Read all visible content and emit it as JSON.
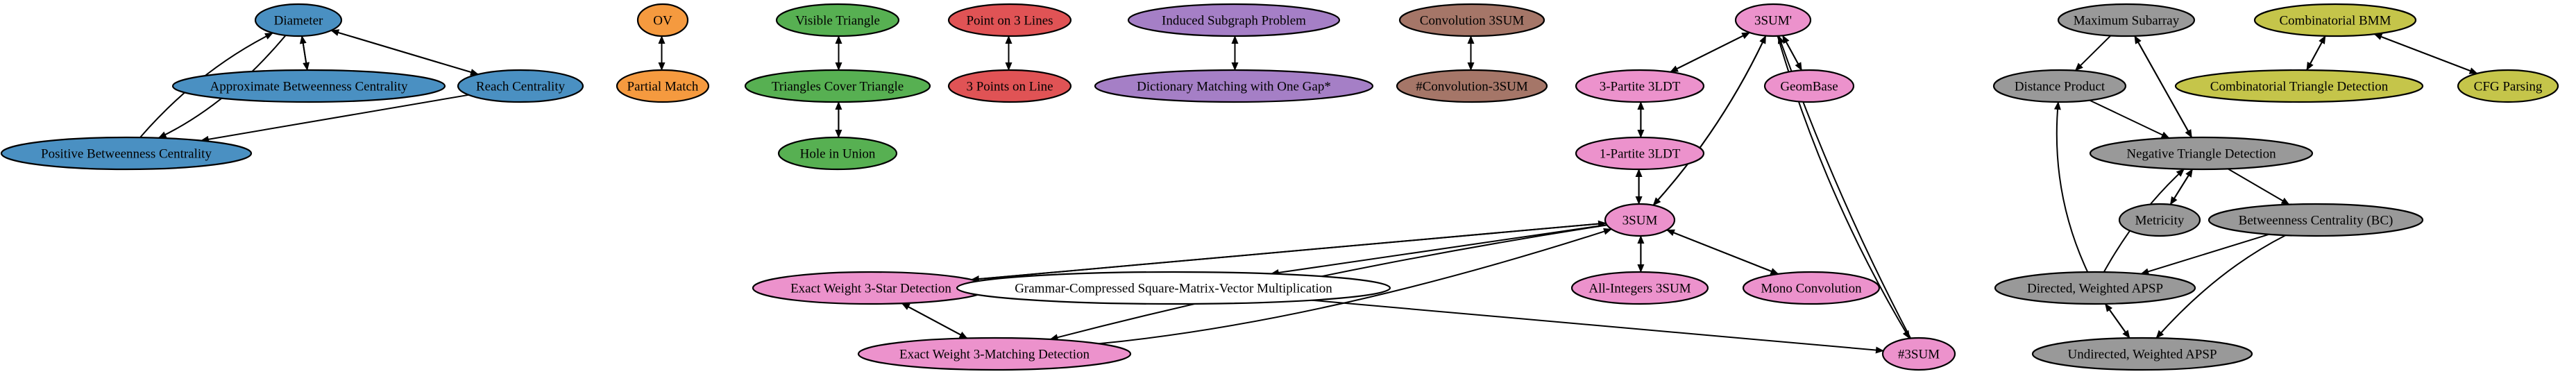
{
  "colors": {
    "blue": "#4a90c2",
    "orange": "#f59a3f",
    "green": "#57b052",
    "red": "#e05355",
    "purple": "#a57fc6",
    "brown": "#a57668",
    "pink": "#ec92cc",
    "gray": "#999999",
    "olive": "#c5c54a",
    "white": "#ffffff"
  },
  "nodes": [
    {
      "id": "diameter",
      "label": "Diameter",
      "color": "blue"
    },
    {
      "id": "approx_bc",
      "label": "Approximate Betweenness Centrality",
      "color": "blue"
    },
    {
      "id": "reach",
      "label": "Reach Centrality",
      "color": "blue"
    },
    {
      "id": "pos_bc",
      "label": "Positive Betweenness Centrality",
      "color": "blue"
    },
    {
      "id": "ov",
      "label": "OV",
      "color": "orange"
    },
    {
      "id": "partial_match",
      "label": "Partial Match",
      "color": "orange"
    },
    {
      "id": "visible_tri",
      "label": "Visible Triangle",
      "color": "green"
    },
    {
      "id": "tri_cover",
      "label": "Triangles Cover Triangle",
      "color": "green"
    },
    {
      "id": "hole_union",
      "label": "Hole in Union",
      "color": "green"
    },
    {
      "id": "pt3lines",
      "label": "Point on 3 Lines",
      "color": "red"
    },
    {
      "id": "pts3line",
      "label": "3 Points on Line",
      "color": "red"
    },
    {
      "id": "induced_sub",
      "label": "Induced Subgraph Problem",
      "color": "purple"
    },
    {
      "id": "dict_match",
      "label": "Dictionary Matching with One Gap*",
      "color": "purple"
    },
    {
      "id": "conv3sum",
      "label": "Convolution 3SUM",
      "color": "brown"
    },
    {
      "id": "num_conv3sum",
      "label": "#Convolution-3SUM",
      "color": "brown"
    },
    {
      "id": "threesum_p",
      "label": "3SUM'",
      "color": "pink"
    },
    {
      "id": "partite3",
      "label": "3-Partite 3LDT",
      "color": "pink"
    },
    {
      "id": "geombase",
      "label": "GeomBase",
      "color": "pink"
    },
    {
      "id": "partite1",
      "label": "1-Partite 3LDT",
      "color": "pink"
    },
    {
      "id": "threesum",
      "label": "3SUM",
      "color": "pink"
    },
    {
      "id": "exact_star",
      "label": "Exact Weight 3-Star Detection",
      "color": "pink"
    },
    {
      "id": "grammar",
      "label": "Grammar-Compressed Square-Matrix-Vector Multiplication",
      "color": "white"
    },
    {
      "id": "all_int",
      "label": "All-Integers 3SUM",
      "color": "pink"
    },
    {
      "id": "mono_conv",
      "label": "Mono Convolution",
      "color": "pink"
    },
    {
      "id": "exact_match",
      "label": "Exact Weight 3-Matching Detection",
      "color": "pink"
    },
    {
      "id": "num3sum",
      "label": "#3SUM",
      "color": "pink"
    },
    {
      "id": "max_subarray",
      "label": "Maximum Subarray",
      "color": "gray"
    },
    {
      "id": "dist_prod",
      "label": "Distance Product",
      "color": "gray"
    },
    {
      "id": "neg_tri",
      "label": "Negative Triangle Detection",
      "color": "gray"
    },
    {
      "id": "metricity",
      "label": "Metricity",
      "color": "gray"
    },
    {
      "id": "bc",
      "label": "Betweenness Centrality (BC)",
      "color": "gray"
    },
    {
      "id": "dir_apsp",
      "label": "Directed, Weighted APSP",
      "color": "gray"
    },
    {
      "id": "undir_apsp",
      "label": "Undirected, Weighted APSP",
      "color": "gray"
    },
    {
      "id": "comb_bmm",
      "label": "Combinatorial BMM",
      "color": "olive"
    },
    {
      "id": "comb_tri",
      "label": "Combinatorial Triangle Detection",
      "color": "olive"
    },
    {
      "id": "cfg",
      "label": "CFG Parsing",
      "color": "olive"
    }
  ],
  "edges": [
    {
      "from": "diameter",
      "to": "approx_bc"
    },
    {
      "from": "approx_bc",
      "to": "diameter"
    },
    {
      "from": "diameter",
      "to": "reach"
    },
    {
      "from": "reach",
      "to": "diameter"
    },
    {
      "from": "diameter",
      "to": "pos_bc"
    },
    {
      "from": "pos_bc",
      "to": "diameter"
    },
    {
      "from": "reach",
      "to": "pos_bc"
    },
    {
      "from": "ov",
      "to": "partial_match"
    },
    {
      "from": "partial_match",
      "to": "ov"
    },
    {
      "from": "visible_tri",
      "to": "tri_cover"
    },
    {
      "from": "tri_cover",
      "to": "visible_tri"
    },
    {
      "from": "tri_cover",
      "to": "hole_union"
    },
    {
      "from": "hole_union",
      "to": "tri_cover"
    },
    {
      "from": "pt3lines",
      "to": "pts3line"
    },
    {
      "from": "pts3line",
      "to": "pt3lines"
    },
    {
      "from": "induced_sub",
      "to": "dict_match"
    },
    {
      "from": "dict_match",
      "to": "induced_sub"
    },
    {
      "from": "conv3sum",
      "to": "num_conv3sum"
    },
    {
      "from": "num_conv3sum",
      "to": "conv3sum"
    },
    {
      "from": "threesum_p",
      "to": "partite3"
    },
    {
      "from": "partite3",
      "to": "threesum_p"
    },
    {
      "from": "threesum_p",
      "to": "geombase"
    },
    {
      "from": "geombase",
      "to": "threesum_p"
    },
    {
      "from": "partite3",
      "to": "partite1"
    },
    {
      "from": "partite1",
      "to": "partite3"
    },
    {
      "from": "partite1",
      "to": "threesum"
    },
    {
      "from": "threesum",
      "to": "partite1"
    },
    {
      "from": "threesum_p",
      "to": "threesum"
    },
    {
      "from": "threesum",
      "to": "threesum_p"
    },
    {
      "from": "threesum_p",
      "to": "num3sum"
    },
    {
      "from": "num3sum",
      "to": "threesum_p"
    },
    {
      "from": "threesum",
      "to": "exact_star"
    },
    {
      "from": "exact_star",
      "to": "threesum"
    },
    {
      "from": "threesum",
      "to": "exact_match"
    },
    {
      "from": "exact_match",
      "to": "threesum"
    },
    {
      "from": "exact_star",
      "to": "exact_match"
    },
    {
      "from": "exact_match",
      "to": "exact_star"
    },
    {
      "from": "threesum",
      "to": "grammar"
    },
    {
      "from": "grammar",
      "to": "num3sum"
    },
    {
      "from": "threesum",
      "to": "all_int"
    },
    {
      "from": "all_int",
      "to": "threesum"
    },
    {
      "from": "threesum",
      "to": "mono_conv"
    },
    {
      "from": "mono_conv",
      "to": "threesum"
    },
    {
      "from": "max_subarray",
      "to": "dist_prod"
    },
    {
      "from": "max_subarray",
      "to": "neg_tri"
    },
    {
      "from": "neg_tri",
      "to": "max_subarray"
    },
    {
      "from": "dist_prod",
      "to": "neg_tri"
    },
    {
      "from": "neg_tri",
      "to": "metricity"
    },
    {
      "from": "metricity",
      "to": "neg_tri"
    },
    {
      "from": "neg_tri",
      "to": "bc"
    },
    {
      "from": "bc",
      "to": "dir_apsp"
    },
    {
      "from": "bc",
      "to": "undir_apsp"
    },
    {
      "from": "dir_apsp",
      "to": "neg_tri"
    },
    {
      "from": "dir_apsp",
      "to": "dist_prod"
    },
    {
      "from": "dir_apsp",
      "to": "undir_apsp"
    },
    {
      "from": "undir_apsp",
      "to": "dir_apsp"
    },
    {
      "from": "comb_bmm",
      "to": "comb_tri"
    },
    {
      "from": "comb_tri",
      "to": "comb_bmm"
    },
    {
      "from": "comb_bmm",
      "to": "cfg"
    },
    {
      "from": "cfg",
      "to": "comb_bmm"
    }
  ]
}
